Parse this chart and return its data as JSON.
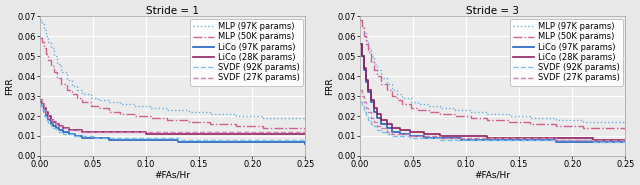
{
  "title_left": "Stride = 1",
  "title_right": "Stride = 3",
  "xlabel": "#FAs/Hr",
  "ylabel": "FRR",
  "xlim": [
    0.0,
    0.25
  ],
  "ylim": [
    0.0,
    0.07
  ],
  "yticks": [
    0.0,
    0.01,
    0.02,
    0.03,
    0.04,
    0.05,
    0.06,
    0.07
  ],
  "xticks": [
    0.0,
    0.05,
    0.1,
    0.15,
    0.2,
    0.25
  ],
  "legend_entries": [
    "MLP (97K params)",
    "MLP (50K params)",
    "LiCo (97K params)",
    "LiCo (28K params)",
    "SVDF (92K params)",
    "SVDF (27K params)"
  ],
  "line_colors": [
    "#6ab0e0",
    "#d06090",
    "#2060c0",
    "#902060",
    "#80c0e8",
    "#d080b0"
  ],
  "line_styles": [
    "dotted",
    "dashdot",
    "solid",
    "solid",
    "dashed",
    "dashed"
  ],
  "line_widths": [
    1.0,
    1.0,
    1.2,
    1.2,
    1.0,
    1.0
  ],
  "stride1": {
    "mlp97": {
      "x": [
        0.0,
        0.002,
        0.004,
        0.006,
        0.008,
        0.01,
        0.013,
        0.016,
        0.02,
        0.025,
        0.03,
        0.035,
        0.04,
        0.048,
        0.055,
        0.065,
        0.075,
        0.09,
        0.105,
        0.12,
        0.14,
        0.16,
        0.185,
        0.21,
        0.25
      ],
      "y": [
        0.068,
        0.066,
        0.063,
        0.06,
        0.057,
        0.054,
        0.05,
        0.046,
        0.042,
        0.038,
        0.035,
        0.033,
        0.031,
        0.029,
        0.028,
        0.027,
        0.026,
        0.025,
        0.024,
        0.023,
        0.022,
        0.021,
        0.02,
        0.019,
        0.018
      ]
    },
    "mlp50": {
      "x": [
        0.0,
        0.002,
        0.004,
        0.006,
        0.008,
        0.01,
        0.013,
        0.016,
        0.02,
        0.025,
        0.03,
        0.035,
        0.04,
        0.048,
        0.055,
        0.065,
        0.075,
        0.09,
        0.105,
        0.12,
        0.14,
        0.16,
        0.185,
        0.21,
        0.25
      ],
      "y": [
        0.059,
        0.057,
        0.054,
        0.051,
        0.048,
        0.045,
        0.042,
        0.039,
        0.036,
        0.033,
        0.031,
        0.029,
        0.027,
        0.025,
        0.024,
        0.022,
        0.021,
        0.02,
        0.019,
        0.018,
        0.017,
        0.016,
        0.015,
        0.014,
        0.013
      ]
    },
    "lico97": {
      "x": [
        0.0,
        0.002,
        0.004,
        0.006,
        0.008,
        0.01,
        0.012,
        0.015,
        0.018,
        0.022,
        0.027,
        0.033,
        0.04,
        0.05,
        0.065,
        0.08,
        0.1,
        0.13,
        0.16,
        0.2,
        0.25
      ],
      "y": [
        0.027,
        0.025,
        0.022,
        0.02,
        0.018,
        0.016,
        0.015,
        0.014,
        0.013,
        0.012,
        0.011,
        0.01,
        0.009,
        0.009,
        0.008,
        0.008,
        0.008,
        0.007,
        0.007,
        0.007,
        0.006
      ]
    },
    "lico28": {
      "x": [
        0.0,
        0.002,
        0.004,
        0.006,
        0.008,
        0.01,
        0.012,
        0.015,
        0.018,
        0.022,
        0.027,
        0.033,
        0.04,
        0.05,
        0.065,
        0.08,
        0.1,
        0.13,
        0.16,
        0.2,
        0.25
      ],
      "y": [
        0.028,
        0.026,
        0.024,
        0.022,
        0.02,
        0.018,
        0.017,
        0.016,
        0.015,
        0.014,
        0.013,
        0.013,
        0.012,
        0.012,
        0.012,
        0.012,
        0.011,
        0.011,
        0.011,
        0.011,
        0.011
      ]
    },
    "svdf92": {
      "x": [
        0.0,
        0.002,
        0.004,
        0.006,
        0.008,
        0.01,
        0.012,
        0.015,
        0.018,
        0.022,
        0.027,
        0.033,
        0.04,
        0.05,
        0.065,
        0.08,
        0.1,
        0.13,
        0.16,
        0.2,
        0.25
      ],
      "y": [
        0.026,
        0.023,
        0.02,
        0.018,
        0.016,
        0.015,
        0.014,
        0.013,
        0.012,
        0.011,
        0.011,
        0.01,
        0.01,
        0.009,
        0.009,
        0.009,
        0.009,
        0.008,
        0.008,
        0.008,
        0.008
      ]
    },
    "svdf27": {
      "x": [
        0.0,
        0.002,
        0.004,
        0.006,
        0.008,
        0.01,
        0.012,
        0.015,
        0.018,
        0.022,
        0.027,
        0.033,
        0.04,
        0.05,
        0.065,
        0.08,
        0.1,
        0.13,
        0.16,
        0.2,
        0.25
      ],
      "y": [
        0.028,
        0.026,
        0.023,
        0.021,
        0.019,
        0.018,
        0.017,
        0.016,
        0.015,
        0.014,
        0.013,
        0.013,
        0.012,
        0.012,
        0.012,
        0.012,
        0.012,
        0.012,
        0.012,
        0.012,
        0.012
      ]
    }
  },
  "stride3": {
    "mlp97": {
      "x": [
        0.0,
        0.002,
        0.004,
        0.006,
        0.008,
        0.01,
        0.013,
        0.016,
        0.02,
        0.025,
        0.03,
        0.035,
        0.04,
        0.048,
        0.055,
        0.065,
        0.075,
        0.09,
        0.105,
        0.12,
        0.14,
        0.16,
        0.185,
        0.21,
        0.25
      ],
      "y": [
        0.068,
        0.065,
        0.062,
        0.058,
        0.054,
        0.05,
        0.046,
        0.043,
        0.039,
        0.036,
        0.033,
        0.031,
        0.029,
        0.027,
        0.026,
        0.025,
        0.024,
        0.023,
        0.022,
        0.021,
        0.02,
        0.019,
        0.018,
        0.017,
        0.016
      ]
    },
    "mlp50": {
      "x": [
        0.0,
        0.002,
        0.004,
        0.006,
        0.008,
        0.01,
        0.013,
        0.016,
        0.02,
        0.025,
        0.03,
        0.035,
        0.04,
        0.048,
        0.055,
        0.065,
        0.075,
        0.09,
        0.105,
        0.12,
        0.14,
        0.16,
        0.185,
        0.21,
        0.25
      ],
      "y": [
        0.068,
        0.064,
        0.06,
        0.056,
        0.052,
        0.047,
        0.043,
        0.04,
        0.036,
        0.033,
        0.03,
        0.028,
        0.026,
        0.024,
        0.023,
        0.022,
        0.021,
        0.02,
        0.019,
        0.018,
        0.017,
        0.016,
        0.015,
        0.014,
        0.013
      ]
    },
    "lico97": {
      "x": [
        0.0,
        0.002,
        0.004,
        0.006,
        0.008,
        0.01,
        0.013,
        0.016,
        0.02,
        0.025,
        0.03,
        0.038,
        0.047,
        0.06,
        0.075,
        0.095,
        0.12,
        0.15,
        0.185,
        0.22,
        0.25
      ],
      "y": [
        0.056,
        0.05,
        0.043,
        0.037,
        0.032,
        0.027,
        0.022,
        0.019,
        0.016,
        0.014,
        0.012,
        0.011,
        0.01,
        0.009,
        0.009,
        0.008,
        0.008,
        0.008,
        0.007,
        0.007,
        0.007
      ]
    },
    "lico28": {
      "x": [
        0.0,
        0.002,
        0.004,
        0.006,
        0.008,
        0.01,
        0.013,
        0.016,
        0.02,
        0.025,
        0.03,
        0.038,
        0.047,
        0.06,
        0.075,
        0.095,
        0.12,
        0.15,
        0.185,
        0.22,
        0.25
      ],
      "y": [
        0.056,
        0.05,
        0.044,
        0.038,
        0.033,
        0.028,
        0.024,
        0.021,
        0.018,
        0.016,
        0.014,
        0.013,
        0.012,
        0.011,
        0.01,
        0.01,
        0.009,
        0.009,
        0.009,
        0.008,
        0.008
      ]
    },
    "svdf92": {
      "x": [
        0.0,
        0.002,
        0.004,
        0.006,
        0.008,
        0.01,
        0.013,
        0.016,
        0.02,
        0.025,
        0.03,
        0.038,
        0.047,
        0.06,
        0.075,
        0.095,
        0.12,
        0.15,
        0.185,
        0.22,
        0.25
      ],
      "y": [
        0.027,
        0.025,
        0.022,
        0.02,
        0.018,
        0.016,
        0.015,
        0.013,
        0.012,
        0.011,
        0.01,
        0.01,
        0.009,
        0.009,
        0.008,
        0.008,
        0.008,
        0.008,
        0.008,
        0.007,
        0.007
      ]
    },
    "svdf27": {
      "x": [
        0.0,
        0.002,
        0.004,
        0.006,
        0.008,
        0.01,
        0.013,
        0.016,
        0.02,
        0.025,
        0.03,
        0.038,
        0.047,
        0.06,
        0.075,
        0.095,
        0.12,
        0.15,
        0.185,
        0.22,
        0.25
      ],
      "y": [
        0.033,
        0.03,
        0.027,
        0.024,
        0.022,
        0.019,
        0.017,
        0.015,
        0.014,
        0.012,
        0.011,
        0.011,
        0.01,
        0.01,
        0.009,
        0.009,
        0.009,
        0.009,
        0.008,
        0.008,
        0.008
      ]
    }
  },
  "fig_bg": "#e8e8e8",
  "axes_bg": "#ebebeb",
  "grid_color": "#ffffff",
  "title_fontsize": 7.5,
  "label_fontsize": 6.5,
  "tick_fontsize": 6.0,
  "legend_fontsize": 6.0
}
